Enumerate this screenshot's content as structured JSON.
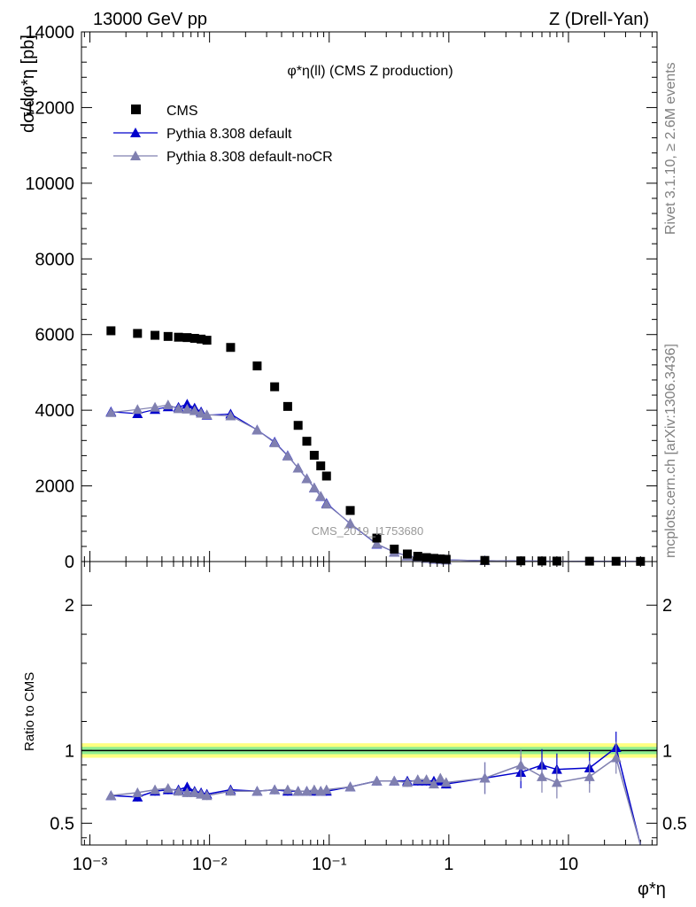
{
  "header": {
    "left": "13000 GeV pp",
    "right": "Z (Drell-Yan)"
  },
  "side": {
    "rivet": "Rivet 3.1.10, ≥ 2.6M events",
    "mcplots": "mcplots.cern.ch [arXiv:1306.3436]"
  },
  "chart_data": [
    {
      "type": "scatter",
      "title": "φ*η(ll) (CMS Z production)",
      "ylabel": "dσ/dφ*η [pb]",
      "xscale": "log",
      "xlim": [
        0.00085,
        55
      ],
      "ylim": [
        0,
        14000
      ],
      "yticks": [
        "0",
        "2000",
        "4000",
        "6000",
        "8000",
        "10000",
        "12000",
        "14000"
      ],
      "watermark": "CMS_2019_I1753680",
      "legend": [
        "CMS",
        "Pythia 8.308 default",
        "Pythia 8.308 default-noCR"
      ],
      "legend_position": "top-left",
      "x": [
        0.0015,
        0.0025,
        0.0035,
        0.0045,
        0.0055,
        0.0065,
        0.0075,
        0.0085,
        0.0095,
        0.015,
        0.025,
        0.035,
        0.045,
        0.055,
        0.065,
        0.075,
        0.085,
        0.095,
        0.15,
        0.25,
        0.35,
        0.45,
        0.55,
        0.65,
        0.75,
        0.85,
        0.95,
        2,
        4,
        6,
        8,
        15,
        25,
        40
      ],
      "series": [
        {
          "name": "CMS",
          "color": "#000000",
          "values": [
            6100,
            6030,
            5980,
            5950,
            5930,
            5920,
            5900,
            5880,
            5850,
            5660,
            5170,
            4620,
            4100,
            3600,
            3180,
            2810,
            2530,
            2260,
            1350,
            620,
            330,
            200,
            140,
            105,
            85,
            70,
            60,
            30,
            18,
            15,
            12,
            10,
            8,
            5
          ]
        },
        {
          "name": "Pythia 8.308 default",
          "color": "#0000cc",
          "values": [
            3960,
            3910,
            4020,
            4090,
            4080,
            4160,
            4060,
            3960,
            3870,
            3900,
            3480,
            3160,
            2800,
            2470,
            2190,
            1950,
            1720,
            1540,
            1000,
            460,
            250,
            150,
            110,
            82,
            65,
            55,
            45,
            24,
            15,
            13,
            10,
            8,
            7,
            1
          ]
        },
        {
          "name": "Pythia 8.308 default-noCR",
          "color": "#8080b0",
          "values": [
            3940,
            4020,
            4080,
            4140,
            4040,
            4030,
            3990,
            3920,
            3880,
            3850,
            3480,
            3140,
            2790,
            2470,
            2190,
            1950,
            1730,
            1520,
            1010,
            470,
            250,
            150,
            110,
            82,
            66,
            56,
            45,
            24,
            16,
            12,
            9,
            7,
            7,
            1
          ]
        }
      ]
    },
    {
      "type": "line",
      "ylabel": "Ratio to CMS",
      "xlabel": "φ*η",
      "xscale": "log",
      "xlim": [
        0.00085,
        55
      ],
      "ylim": [
        0.35,
        2.3
      ],
      "yticks": [
        "0.5",
        "1",
        "2"
      ],
      "xticks": [
        "10⁻³",
        "10⁻²",
        "10⁻¹",
        "1",
        "10"
      ],
      "band": {
        "inner": [
          0.975,
          1.025
        ],
        "outer": [
          0.95,
          1.05
        ]
      },
      "x": [
        0.0015,
        0.0025,
        0.0035,
        0.0045,
        0.0055,
        0.0065,
        0.0075,
        0.0085,
        0.0095,
        0.015,
        0.025,
        0.035,
        0.045,
        0.055,
        0.065,
        0.075,
        0.085,
        0.095,
        0.15,
        0.25,
        0.35,
        0.45,
        0.55,
        0.65,
        0.75,
        0.85,
        0.95,
        2,
        4,
        6,
        8,
        15,
        25,
        40
      ],
      "series": [
        {
          "name": "Pythia 8.308 default",
          "color": "#0000cc",
          "values": [
            0.69,
            0.68,
            0.72,
            0.73,
            0.73,
            0.75,
            0.72,
            0.71,
            0.7,
            0.73,
            0.72,
            0.73,
            0.72,
            0.72,
            0.72,
            0.72,
            0.72,
            0.72,
            0.75,
            0.79,
            0.79,
            0.79,
            0.79,
            0.79,
            0.79,
            0.79,
            0.77,
            0.81,
            0.85,
            0.9,
            0.87,
            0.88,
            1.02,
            0.2
          ]
        },
        {
          "name": "Pythia 8.308 default-noCR",
          "color": "#8080b0",
          "values": [
            0.69,
            0.71,
            0.73,
            0.74,
            0.72,
            0.71,
            0.71,
            0.7,
            0.69,
            0.72,
            0.72,
            0.73,
            0.73,
            0.72,
            0.72,
            0.73,
            0.72,
            0.73,
            0.75,
            0.79,
            0.79,
            0.78,
            0.8,
            0.8,
            0.77,
            0.81,
            0.78,
            0.81,
            0.9,
            0.82,
            0.78,
            0.82,
            0.95,
            0.2
          ]
        }
      ]
    }
  ]
}
